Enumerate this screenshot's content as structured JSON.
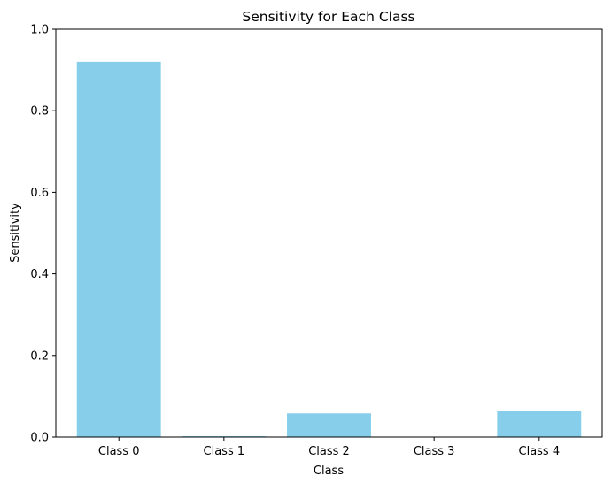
{
  "chart_data": {
    "type": "bar",
    "title": "Sensitivity for Each Class",
    "xlabel": "Class",
    "ylabel": "Sensitivity",
    "categories": [
      "Class 0",
      "Class 1",
      "Class 2",
      "Class 3",
      "Class 4"
    ],
    "values": [
      0.92,
      0.002,
      0.058,
      0.0,
      0.065
    ],
    "ylim": [
      0,
      1.0
    ],
    "yticks": [
      0.0,
      0.2,
      0.4,
      0.6,
      0.8,
      1.0
    ],
    "ytick_labels": [
      "0.0",
      "0.2",
      "0.4",
      "0.6",
      "0.8",
      "1.0"
    ],
    "bar_color": "#87CEEB",
    "grid": false,
    "legend": "none"
  }
}
